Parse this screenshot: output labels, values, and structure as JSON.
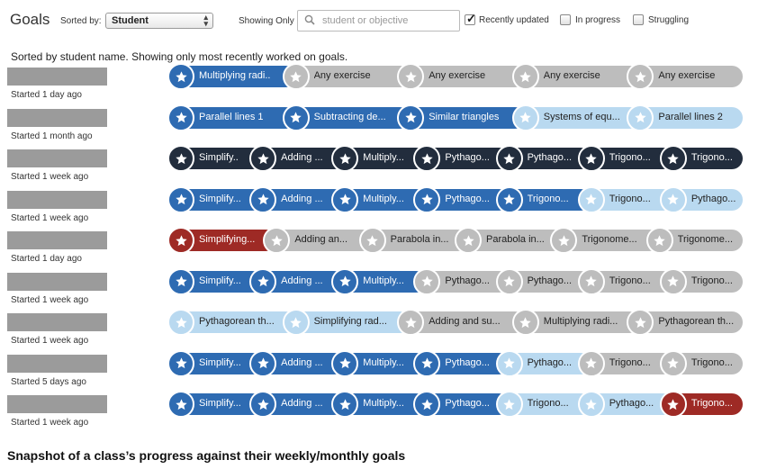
{
  "header": {
    "title": "Goals",
    "sorted_by_label": "Sorted by:",
    "sort_value": "Student",
    "showing_only_label": "Showing Only",
    "search_placeholder": "student or objective",
    "filters": [
      {
        "label": "Recently updated",
        "checked": true
      },
      {
        "label": "In progress",
        "checked": false
      },
      {
        "label": "Struggling",
        "checked": false
      }
    ]
  },
  "summary": "Sorted by student name. Showing only most recently worked on goals.",
  "colors": {
    "mastered": "#2e6bb2",
    "dark": "#222d3d",
    "struggling": "#9e2a25",
    "started": "#b9d9f0",
    "not_started": "#bdbdbd"
  },
  "students": [
    {
      "started": "Started 1 day ago",
      "goals": [
        {
          "label": "Multiplying radi..",
          "status": "mastered"
        },
        {
          "label": "Any exercise",
          "status": "not_started"
        },
        {
          "label": "Any exercise",
          "status": "not_started"
        },
        {
          "label": "Any exercise",
          "status": "not_started"
        },
        {
          "label": "Any exercise",
          "status": "not_started"
        }
      ]
    },
    {
      "started": "Started 1 month ago",
      "goals": [
        {
          "label": "Parallel lines 1",
          "status": "mastered"
        },
        {
          "label": "Subtracting de...",
          "status": "mastered"
        },
        {
          "label": "Similar triangles",
          "status": "mastered"
        },
        {
          "label": "Systems of equ...",
          "status": "started"
        },
        {
          "label": "Parallel lines 2",
          "status": "started"
        }
      ]
    },
    {
      "started": "Started 1 week ago",
      "goals": [
        {
          "label": "Simplify..",
          "status": "dark"
        },
        {
          "label": "Adding ...",
          "status": "dark"
        },
        {
          "label": "Multiply...",
          "status": "dark"
        },
        {
          "label": "Pythago...",
          "status": "dark"
        },
        {
          "label": "Pythago...",
          "status": "dark"
        },
        {
          "label": "Trigono...",
          "status": "dark"
        },
        {
          "label": "Trigono...",
          "status": "dark"
        }
      ]
    },
    {
      "started": "Started 1 week ago",
      "goals": [
        {
          "label": "Simplify...",
          "status": "mastered"
        },
        {
          "label": "Adding ...",
          "status": "mastered"
        },
        {
          "label": "Multiply...",
          "status": "mastered"
        },
        {
          "label": "Pythago...",
          "status": "mastered"
        },
        {
          "label": "Trigono...",
          "status": "mastered"
        },
        {
          "label": "Trigono...",
          "status": "started"
        },
        {
          "label": "Pythago...",
          "status": "started"
        }
      ]
    },
    {
      "started": "Started 1 day ago",
      "goals": [
        {
          "label": "Simplifying...",
          "status": "struggling"
        },
        {
          "label": "Adding an...",
          "status": "not_started"
        },
        {
          "label": "Parabola in...",
          "status": "not_started"
        },
        {
          "label": "Parabola in...",
          "status": "not_started"
        },
        {
          "label": "Trigonome...",
          "status": "not_started"
        },
        {
          "label": "Trigonome...",
          "status": "not_started"
        }
      ]
    },
    {
      "started": "Started 1 week ago",
      "goals": [
        {
          "label": "Simplify...",
          "status": "mastered"
        },
        {
          "label": "Adding ...",
          "status": "mastered"
        },
        {
          "label": "Multiply...",
          "status": "mastered"
        },
        {
          "label": "Pythago...",
          "status": "not_started"
        },
        {
          "label": "Pythago...",
          "status": "not_started"
        },
        {
          "label": "Trigono...",
          "status": "not_started"
        },
        {
          "label": "Trigono...",
          "status": "not_started"
        }
      ]
    },
    {
      "started": "Started 1 week ago",
      "goals": [
        {
          "label": "Pythagorean th...",
          "status": "started"
        },
        {
          "label": "Simplifying rad...",
          "status": "started"
        },
        {
          "label": "Adding and su...",
          "status": "not_started"
        },
        {
          "label": "Multiplying radi...",
          "status": "not_started"
        },
        {
          "label": "Pythagorean th...",
          "status": "not_started"
        }
      ]
    },
    {
      "started": "Started 5 days ago",
      "goals": [
        {
          "label": "Simplify...",
          "status": "mastered"
        },
        {
          "label": "Adding ...",
          "status": "mastered"
        },
        {
          "label": "Multiply...",
          "status": "mastered"
        },
        {
          "label": "Pythago...",
          "status": "mastered"
        },
        {
          "label": "Pythago...",
          "status": "started"
        },
        {
          "label": "Trigono...",
          "status": "not_started"
        },
        {
          "label": "Trigono...",
          "status": "not_started"
        }
      ]
    },
    {
      "started": "Started 1 week ago",
      "goals": [
        {
          "label": "Simplify...",
          "status": "mastered"
        },
        {
          "label": "Adding ...",
          "status": "mastered"
        },
        {
          "label": "Multiply...",
          "status": "mastered"
        },
        {
          "label": "Pythago...",
          "status": "mastered"
        },
        {
          "label": "Trigono...",
          "status": "started"
        },
        {
          "label": "Pythago...",
          "status": "started"
        },
        {
          "label": "Trigono...",
          "status": "struggling"
        }
      ]
    }
  ],
  "caption": "Snapshot of a class’s progress against their weekly/monthly goals"
}
